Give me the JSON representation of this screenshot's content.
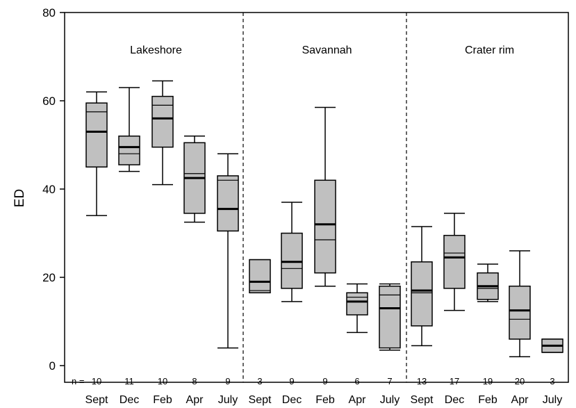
{
  "chart_data": {
    "type": "box",
    "ylabel": "ED",
    "ylim": [
      0,
      80
    ],
    "yticks": [
      0,
      20,
      40,
      60,
      80
    ],
    "n_prefix": "n =",
    "groups": [
      {
        "name": "Lakeshore",
        "boxes": [
          {
            "category": "Sept",
            "n": "10",
            "whisker_low": 34,
            "q1": 45,
            "median": 53,
            "mean": 57.5,
            "q3": 59.5,
            "whisker_high": 62
          },
          {
            "category": "Dec",
            "n": "11",
            "whisker_low": 44,
            "q1": 45.5,
            "median": 49.5,
            "mean": 48,
            "q3": 52,
            "whisker_high": 63
          },
          {
            "category": "Feb",
            "n": "10",
            "whisker_low": 41,
            "q1": 49.5,
            "median": 56,
            "mean": 59,
            "q3": 61,
            "whisker_high": 64.5
          },
          {
            "category": "Apr",
            "n": "8",
            "whisker_low": 32.5,
            "q1": 34.5,
            "median": 42.5,
            "mean": 43.5,
            "q3": 50.5,
            "whisker_high": 52
          },
          {
            "category": "July",
            "n": "9",
            "whisker_low": 4,
            "q1": 30.5,
            "median": 35.5,
            "mean": 42,
            "q3": 43,
            "whisker_high": 48
          }
        ]
      },
      {
        "name": "Savannah",
        "boxes": [
          {
            "category": "Sept",
            "n": "3",
            "whisker_low": 16.5,
            "q1": 16.5,
            "median": 19,
            "mean": 17,
            "q3": 24,
            "whisker_high": 24
          },
          {
            "category": "Dec",
            "n": "9",
            "whisker_low": 14.5,
            "q1": 17.5,
            "median": 23.5,
            "mean": 22,
            "q3": 30,
            "whisker_high": 37
          },
          {
            "category": "Feb",
            "n": "9",
            "whisker_low": 18,
            "q1": 21,
            "median": 32,
            "mean": 28.5,
            "q3": 42,
            "whisker_high": 58.5
          },
          {
            "category": "Apr",
            "n": "6",
            "whisker_low": 7.5,
            "q1": 11.5,
            "median": 14.5,
            "mean": 15.5,
            "q3": 16.5,
            "whisker_high": 18.5
          },
          {
            "category": "July",
            "n": "7",
            "whisker_low": 3.5,
            "q1": 4,
            "median": 13,
            "mean": 16,
            "q3": 18,
            "whisker_high": 18.5
          }
        ]
      },
      {
        "name": "Crater rim",
        "boxes": [
          {
            "category": "Sept",
            "n": "13",
            "whisker_low": 4.5,
            "q1": 9,
            "median": 17,
            "mean": 16.5,
            "q3": 23.5,
            "whisker_high": 31.5
          },
          {
            "category": "Dec",
            "n": "17",
            "whisker_low": 12.5,
            "q1": 17.5,
            "median": 24.5,
            "mean": 25.5,
            "q3": 29.5,
            "whisker_high": 34.5
          },
          {
            "category": "Feb",
            "n": "19",
            "whisker_low": 14.5,
            "q1": 15,
            "median": 18,
            "mean": 17.5,
            "q3": 21,
            "whisker_high": 23
          },
          {
            "category": "Apr",
            "n": "20",
            "whisker_low": 2,
            "q1": 6,
            "median": 12.5,
            "mean": 10.5,
            "q3": 18,
            "whisker_high": 26
          },
          {
            "category": "July",
            "n": "3",
            "whisker_low": 3,
            "q1": 3,
            "median": 4.5,
            "mean": 4.5,
            "q3": 6,
            "whisker_high": 6
          }
        ]
      }
    ]
  }
}
